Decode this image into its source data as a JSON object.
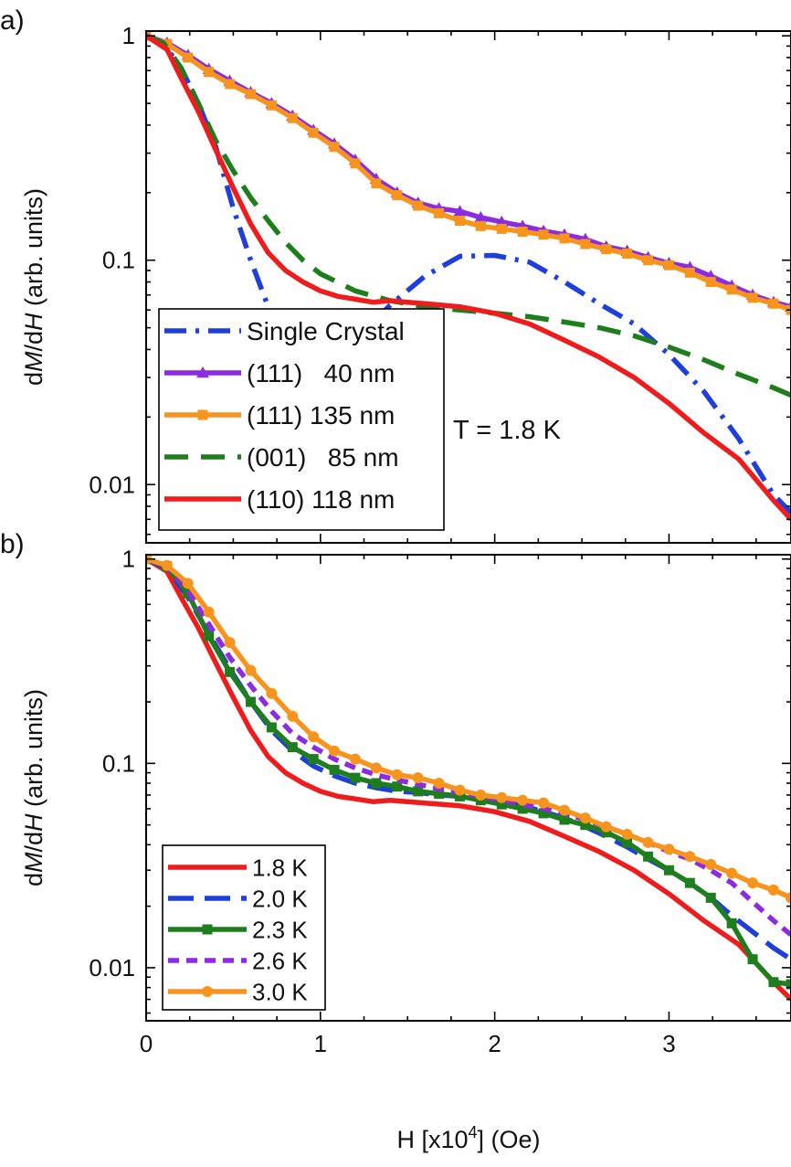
{
  "chart_data": [
    {
      "type": "line",
      "panel_label": "a)",
      "yscale": "log",
      "xlim": [
        0,
        3.7
      ],
      "ylim": [
        0.0055,
        1.05
      ],
      "xticks": [
        0,
        1,
        2,
        3
      ],
      "yticks": [
        {
          "value": 1,
          "label": "1"
        },
        {
          "value": 0.1,
          "label": "0.1"
        },
        {
          "value": 0.01,
          "label": "0.01"
        }
      ],
      "ylabel_parts": [
        "d",
        "M",
        "/d",
        "H",
        " (arb. units)"
      ],
      "annotation": "T = 1.8 K",
      "legend_position": "bottom-left",
      "series": [
        {
          "name": "Single Crystal",
          "color": "#1f3fdc",
          "dash": "dashdot",
          "marker": "none",
          "x": [
            0,
            0.1,
            0.2,
            0.3,
            0.4,
            0.5,
            0.6,
            0.7,
            0.8,
            0.9,
            1.0,
            1.1,
            1.2,
            1.3,
            1.4,
            1.6,
            1.8,
            2.0,
            2.2,
            2.4,
            2.6,
            2.8,
            3.0,
            3.2,
            3.4,
            3.6,
            3.7
          ],
          "y": [
            1.0,
            0.92,
            0.72,
            0.5,
            0.32,
            0.17,
            0.1,
            0.062,
            0.045,
            0.042,
            0.042,
            0.041,
            0.046,
            0.053,
            0.063,
            0.085,
            0.104,
            0.105,
            0.098,
            0.08,
            0.064,
            0.052,
            0.038,
            0.026,
            0.016,
            0.009,
            0.0075
          ]
        },
        {
          "name": "(111)   40 nm",
          "color": "#8b2be2",
          "dash": "solid",
          "marker": "triangle",
          "x": [
            0,
            0.12,
            0.24,
            0.36,
            0.48,
            0.6,
            0.72,
            0.84,
            0.96,
            1.08,
            1.2,
            1.32,
            1.44,
            1.56,
            1.68,
            1.8,
            1.92,
            2.04,
            2.16,
            2.28,
            2.4,
            2.52,
            2.64,
            2.76,
            2.88,
            3.0,
            3.12,
            3.24,
            3.36,
            3.48,
            3.6,
            3.7
          ],
          "y": [
            1.0,
            0.93,
            0.82,
            0.71,
            0.63,
            0.56,
            0.5,
            0.44,
            0.38,
            0.33,
            0.28,
            0.23,
            0.2,
            0.18,
            0.17,
            0.165,
            0.155,
            0.148,
            0.142,
            0.135,
            0.13,
            0.124,
            0.115,
            0.11,
            0.103,
            0.097,
            0.093,
            0.085,
            0.077,
            0.07,
            0.065,
            0.062
          ]
        },
        {
          "name": "(111) 135 nm",
          "color": "#f7941d",
          "dash": "solid",
          "marker": "square",
          "x": [
            0,
            0.12,
            0.24,
            0.36,
            0.48,
            0.6,
            0.72,
            0.84,
            0.96,
            1.08,
            1.2,
            1.32,
            1.44,
            1.56,
            1.68,
            1.8,
            1.92,
            2.04,
            2.16,
            2.28,
            2.4,
            2.52,
            2.64,
            2.76,
            2.88,
            3.0,
            3.12,
            3.24,
            3.36,
            3.48,
            3.6,
            3.7
          ],
          "y": [
            1.0,
            0.92,
            0.8,
            0.69,
            0.61,
            0.55,
            0.49,
            0.43,
            0.37,
            0.32,
            0.27,
            0.22,
            0.195,
            0.175,
            0.162,
            0.15,
            0.142,
            0.138,
            0.134,
            0.13,
            0.125,
            0.118,
            0.112,
            0.107,
            0.1,
            0.095,
            0.088,
            0.08,
            0.074,
            0.068,
            0.064,
            0.06
          ]
        },
        {
          "name": "(001)   85 nm",
          "color": "#1e7e1e",
          "dash": "dashed",
          "marker": "none",
          "x": [
            0,
            0.1,
            0.2,
            0.3,
            0.4,
            0.5,
            0.6,
            0.7,
            0.8,
            0.9,
            1.0,
            1.2,
            1.4,
            1.6,
            1.8,
            2.0,
            2.2,
            2.4,
            2.6,
            2.8,
            3.0,
            3.2,
            3.4,
            3.6,
            3.7
          ],
          "y": [
            1.0,
            0.93,
            0.72,
            0.5,
            0.34,
            0.25,
            0.19,
            0.15,
            0.12,
            0.1,
            0.087,
            0.073,
            0.066,
            0.062,
            0.06,
            0.058,
            0.056,
            0.053,
            0.05,
            0.046,
            0.041,
            0.036,
            0.031,
            0.027,
            0.025
          ]
        },
        {
          "name": "(110) 118 nm",
          "color": "#ee1c1c",
          "dash": "solid",
          "marker": "none",
          "x": [
            0,
            0.12,
            0.2,
            0.3,
            0.4,
            0.5,
            0.6,
            0.7,
            0.8,
            0.9,
            1.0,
            1.1,
            1.2,
            1.3,
            1.4,
            1.5,
            1.6,
            1.7,
            1.8,
            1.9,
            2.0,
            2.2,
            2.4,
            2.6,
            2.8,
            3.0,
            3.2,
            3.4,
            3.6,
            3.7
          ],
          "y": [
            1.0,
            0.87,
            0.65,
            0.46,
            0.31,
            0.21,
            0.145,
            0.108,
            0.09,
            0.08,
            0.073,
            0.069,
            0.067,
            0.065,
            0.066,
            0.065,
            0.064,
            0.063,
            0.062,
            0.06,
            0.058,
            0.052,
            0.044,
            0.037,
            0.03,
            0.023,
            0.017,
            0.013,
            0.0085,
            0.007
          ]
        }
      ]
    },
    {
      "type": "line",
      "panel_label": "b)",
      "yscale": "log",
      "xlim": [
        0,
        3.7
      ],
      "ylim": [
        0.0055,
        1.05
      ],
      "xticks": [
        0,
        1,
        2,
        3
      ],
      "yticks": [
        {
          "value": 1,
          "label": "1"
        },
        {
          "value": 0.1,
          "label": "0.1"
        },
        {
          "value": 0.01,
          "label": "0.01"
        }
      ],
      "xlabel_base": "H [x10",
      "xlabel_exp": "4",
      "xlabel_tail": "] (Oe)",
      "ylabel_parts": [
        "d",
        "M",
        "/d",
        "H",
        " (arb. units)"
      ],
      "legend_position": "bottom-left",
      "series": [
        {
          "name": "1.8 K",
          "color": "#ee1c1c",
          "dash": "solid",
          "marker": "none",
          "x": [
            0,
            0.12,
            0.2,
            0.3,
            0.4,
            0.5,
            0.6,
            0.7,
            0.8,
            0.9,
            1.0,
            1.1,
            1.2,
            1.3,
            1.4,
            1.5,
            1.6,
            1.7,
            1.8,
            1.9,
            2.0,
            2.2,
            2.4,
            2.6,
            2.8,
            3.0,
            3.2,
            3.4,
            3.6,
            3.7
          ],
          "y": [
            1.0,
            0.87,
            0.65,
            0.46,
            0.31,
            0.21,
            0.145,
            0.108,
            0.09,
            0.08,
            0.073,
            0.069,
            0.067,
            0.065,
            0.066,
            0.065,
            0.064,
            0.063,
            0.062,
            0.06,
            0.058,
            0.052,
            0.044,
            0.037,
            0.03,
            0.023,
            0.017,
            0.013,
            0.0085,
            0.007
          ]
        },
        {
          "name": "2.0 K",
          "color": "#1f3fdc",
          "dash": "longdash",
          "marker": "none",
          "x": [
            0,
            0.12,
            0.24,
            0.36,
            0.48,
            0.6,
            0.72,
            0.84,
            0.96,
            1.08,
            1.2,
            1.32,
            1.44,
            1.56,
            1.68,
            1.8,
            1.92,
            2.04,
            2.16,
            2.28,
            2.4,
            2.52,
            2.64,
            2.76,
            2.88,
            3.0,
            3.12,
            3.24,
            3.36,
            3.48,
            3.6,
            3.7
          ],
          "y": [
            1.0,
            0.9,
            0.65,
            0.43,
            0.29,
            0.2,
            0.145,
            0.115,
            0.097,
            0.087,
            0.08,
            0.076,
            0.073,
            0.072,
            0.07,
            0.069,
            0.067,
            0.065,
            0.062,
            0.058,
            0.054,
            0.049,
            0.044,
            0.039,
            0.034,
            0.03,
            0.026,
            0.022,
            0.018,
            0.015,
            0.0125,
            0.011
          ]
        },
        {
          "name": "2.3 K",
          "color": "#1e7e1e",
          "dash": "solid",
          "marker": "square",
          "x": [
            0,
            0.12,
            0.24,
            0.36,
            0.48,
            0.6,
            0.72,
            0.84,
            0.96,
            1.08,
            1.2,
            1.32,
            1.44,
            1.56,
            1.68,
            1.8,
            1.92,
            2.04,
            2.16,
            2.28,
            2.4,
            2.52,
            2.64,
            2.76,
            2.88,
            3.0,
            3.12,
            3.24,
            3.36,
            3.48,
            3.6,
            3.7
          ],
          "y": [
            1.0,
            0.92,
            0.68,
            0.42,
            0.28,
            0.2,
            0.15,
            0.12,
            0.105,
            0.093,
            0.085,
            0.08,
            0.077,
            0.073,
            0.071,
            0.069,
            0.066,
            0.063,
            0.06,
            0.057,
            0.053,
            0.05,
            0.046,
            0.041,
            0.035,
            0.03,
            0.026,
            0.022,
            0.0165,
            0.011,
            0.0085,
            0.0083
          ]
        },
        {
          "name": "2.6 K",
          "color": "#8b2be2",
          "dash": "shortdash",
          "marker": "none",
          "x": [
            0,
            0.12,
            0.24,
            0.36,
            0.48,
            0.6,
            0.72,
            0.84,
            0.96,
            1.08,
            1.2,
            1.32,
            1.44,
            1.56,
            1.68,
            1.8,
            1.92,
            2.04,
            2.16,
            2.28,
            2.4,
            2.52,
            2.64,
            2.76,
            2.88,
            3.0,
            3.12,
            3.24,
            3.36,
            3.48,
            3.6,
            3.7
          ],
          "y": [
            1.0,
            0.92,
            0.7,
            0.48,
            0.33,
            0.24,
            0.18,
            0.14,
            0.12,
            0.105,
            0.095,
            0.088,
            0.083,
            0.079,
            0.075,
            0.072,
            0.069,
            0.066,
            0.063,
            0.06,
            0.057,
            0.053,
            0.049,
            0.045,
            0.041,
            0.037,
            0.034,
            0.03,
            0.026,
            0.021,
            0.017,
            0.0145
          ]
        },
        {
          "name": "3.0 K",
          "color": "#f7941d",
          "dash": "solid",
          "marker": "circle",
          "x": [
            0,
            0.12,
            0.24,
            0.36,
            0.48,
            0.6,
            0.72,
            0.84,
            0.96,
            1.08,
            1.2,
            1.32,
            1.44,
            1.56,
            1.68,
            1.8,
            1.92,
            2.04,
            2.16,
            2.28,
            2.4,
            2.52,
            2.64,
            2.76,
            2.88,
            3.0,
            3.12,
            3.24,
            3.36,
            3.48,
            3.6,
            3.7
          ],
          "y": [
            1.0,
            0.93,
            0.76,
            0.55,
            0.39,
            0.285,
            0.22,
            0.17,
            0.135,
            0.115,
            0.105,
            0.095,
            0.088,
            0.085,
            0.08,
            0.074,
            0.07,
            0.068,
            0.066,
            0.064,
            0.059,
            0.054,
            0.049,
            0.045,
            0.041,
            0.038,
            0.035,
            0.032,
            0.029,
            0.026,
            0.024,
            0.022
          ]
        }
      ]
    }
  ]
}
